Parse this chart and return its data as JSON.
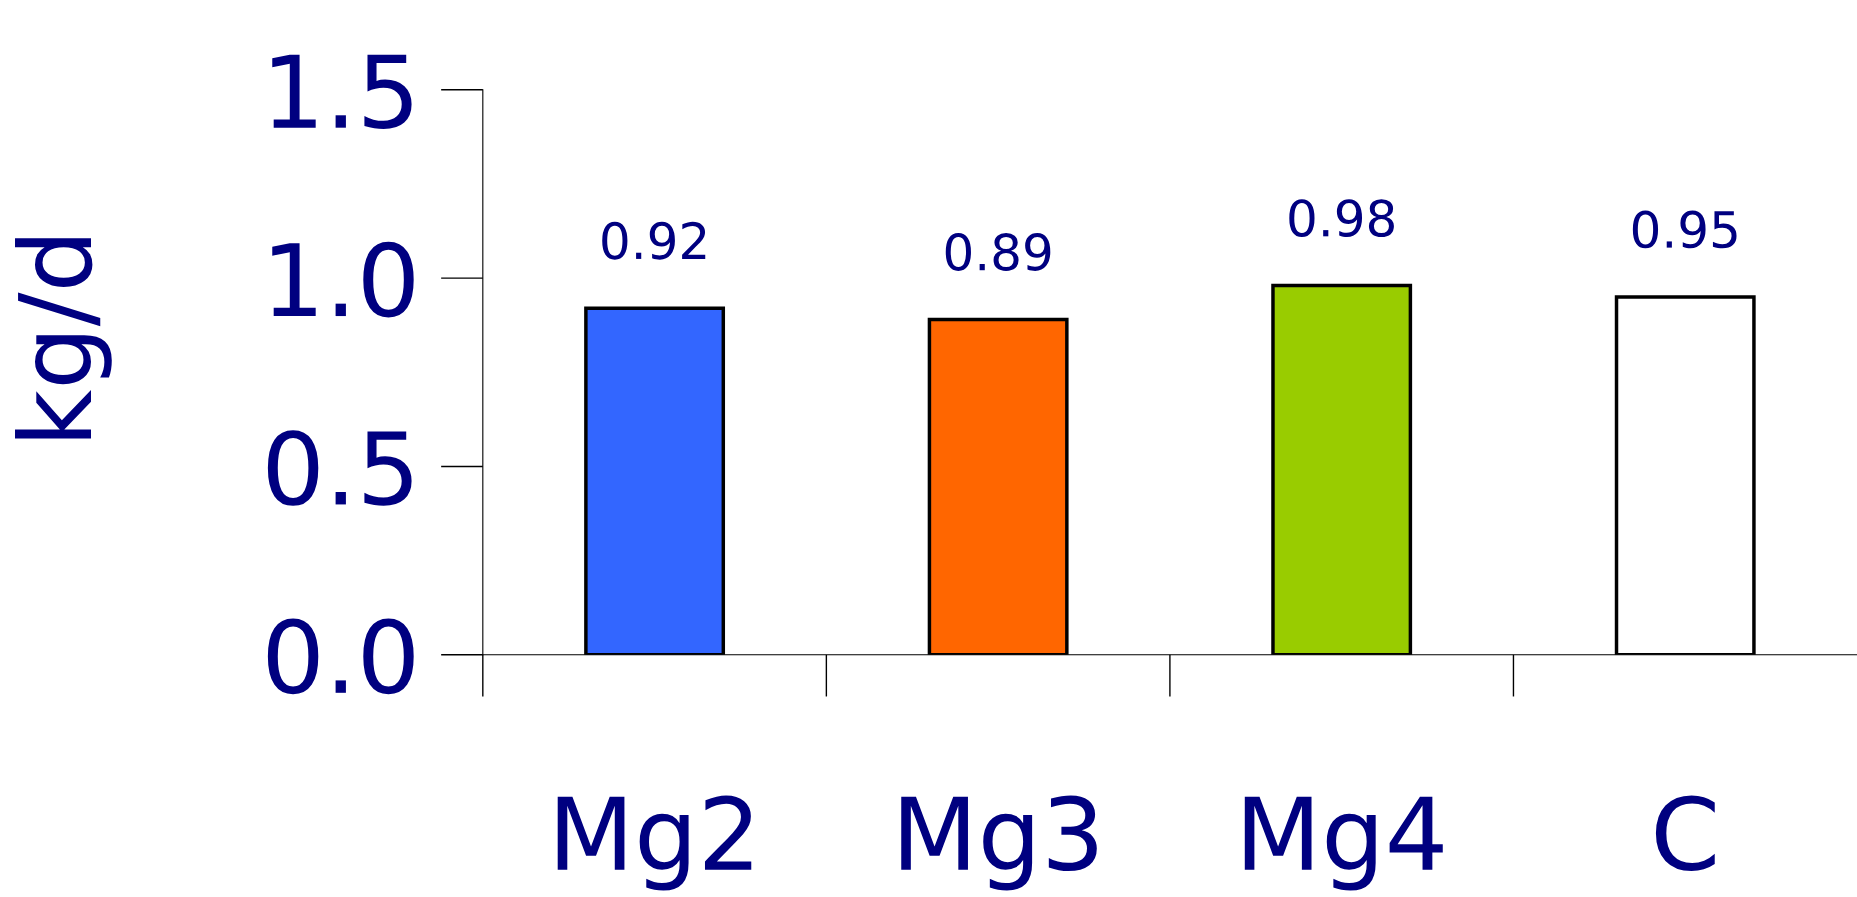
{
  "chart_data": {
    "type": "bar",
    "ylabel": "kg/d",
    "categories": [
      "Mg2",
      "Mg3",
      "Mg4",
      "C"
    ],
    "values": [
      0.92,
      0.89,
      0.98,
      0.95
    ],
    "colors": [
      "#3366ff",
      "#ff6600",
      "#99cc00",
      "#ffffff"
    ],
    "ylim": [
      0,
      1.5
    ],
    "yticks": [
      {
        "value": 0,
        "label": "0.0"
      },
      {
        "value": 0.5,
        "label": "0.5"
      },
      {
        "value": 1,
        "label": "1.0"
      },
      {
        "value": 1.5,
        "label": "1.5"
      }
    ],
    "data_labels": true,
    "grid": false,
    "legend": false
  }
}
